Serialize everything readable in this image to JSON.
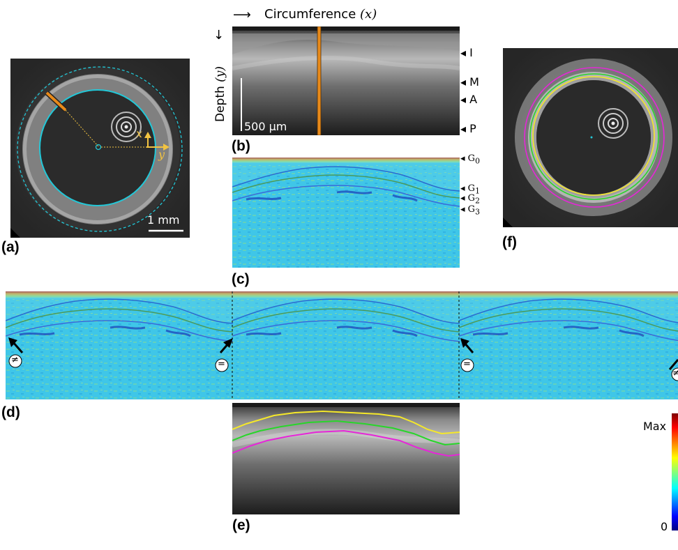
{
  "panels": {
    "a": {
      "label": "(a)",
      "axis_x": "x",
      "axis_y": "y",
      "scalebar": "1 mm"
    },
    "b": {
      "label": "(b)",
      "xaxis": "Circumference",
      "xvar": "(x)",
      "yaxis": "Depth",
      "yvar": "(y)",
      "scalebar": "500 µm",
      "layers": [
        "I",
        "M",
        "A",
        "P"
      ]
    },
    "c": {
      "label": "(c)",
      "g_labels": [
        "G",
        "G",
        "G",
        "G"
      ],
      "g_subs": [
        "0",
        "1",
        "2",
        "3"
      ]
    },
    "d": {
      "label": "(d)",
      "markers": [
        "≠",
        "=",
        "=",
        "≠"
      ]
    },
    "e": {
      "label": "(e)"
    },
    "f": {
      "label": "(f)"
    }
  },
  "colorbar": {
    "max_label": "Max",
    "min_label": "0"
  },
  "colors": {
    "cyan_contour": "#22c8d8",
    "orange_line": "#e88a1a",
    "yellow_arrow": "#f2c341",
    "contour_yellow": "#f5e829",
    "contour_green": "#28d62a",
    "contour_magenta": "#e626d8"
  }
}
